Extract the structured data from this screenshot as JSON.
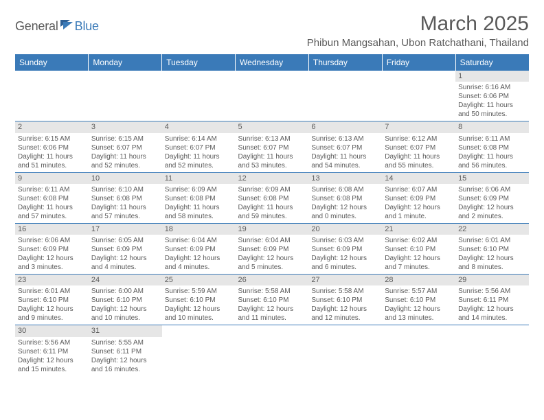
{
  "logo": {
    "part1": "General",
    "part2": "Blue"
  },
  "title": "March 2025",
  "location": "Phibun Mangsahan, Ubon Ratchathani, Thailand",
  "colors": {
    "header_bg": "#3a7ab8",
    "header_text": "#ffffff",
    "daynum_bg": "#e6e6e6",
    "text": "#5a5a5a",
    "rule": "#3a7ab8",
    "logo_blue": "#3a7ab8"
  },
  "weekdays": [
    "Sunday",
    "Monday",
    "Tuesday",
    "Wednesday",
    "Thursday",
    "Friday",
    "Saturday"
  ],
  "weeks": [
    [
      null,
      null,
      null,
      null,
      null,
      null,
      {
        "d": "1",
        "sr": "Sunrise: 6:16 AM",
        "ss": "Sunset: 6:06 PM",
        "dl": "Daylight: 11 hours and 50 minutes."
      }
    ],
    [
      {
        "d": "2",
        "sr": "Sunrise: 6:15 AM",
        "ss": "Sunset: 6:06 PM",
        "dl": "Daylight: 11 hours and 51 minutes."
      },
      {
        "d": "3",
        "sr": "Sunrise: 6:15 AM",
        "ss": "Sunset: 6:07 PM",
        "dl": "Daylight: 11 hours and 52 minutes."
      },
      {
        "d": "4",
        "sr": "Sunrise: 6:14 AM",
        "ss": "Sunset: 6:07 PM",
        "dl": "Daylight: 11 hours and 52 minutes."
      },
      {
        "d": "5",
        "sr": "Sunrise: 6:13 AM",
        "ss": "Sunset: 6:07 PM",
        "dl": "Daylight: 11 hours and 53 minutes."
      },
      {
        "d": "6",
        "sr": "Sunrise: 6:13 AM",
        "ss": "Sunset: 6:07 PM",
        "dl": "Daylight: 11 hours and 54 minutes."
      },
      {
        "d": "7",
        "sr": "Sunrise: 6:12 AM",
        "ss": "Sunset: 6:07 PM",
        "dl": "Daylight: 11 hours and 55 minutes."
      },
      {
        "d": "8",
        "sr": "Sunrise: 6:11 AM",
        "ss": "Sunset: 6:08 PM",
        "dl": "Daylight: 11 hours and 56 minutes."
      }
    ],
    [
      {
        "d": "9",
        "sr": "Sunrise: 6:11 AM",
        "ss": "Sunset: 6:08 PM",
        "dl": "Daylight: 11 hours and 57 minutes."
      },
      {
        "d": "10",
        "sr": "Sunrise: 6:10 AM",
        "ss": "Sunset: 6:08 PM",
        "dl": "Daylight: 11 hours and 57 minutes."
      },
      {
        "d": "11",
        "sr": "Sunrise: 6:09 AM",
        "ss": "Sunset: 6:08 PM",
        "dl": "Daylight: 11 hours and 58 minutes."
      },
      {
        "d": "12",
        "sr": "Sunrise: 6:09 AM",
        "ss": "Sunset: 6:08 PM",
        "dl": "Daylight: 11 hours and 59 minutes."
      },
      {
        "d": "13",
        "sr": "Sunrise: 6:08 AM",
        "ss": "Sunset: 6:08 PM",
        "dl": "Daylight: 12 hours and 0 minutes."
      },
      {
        "d": "14",
        "sr": "Sunrise: 6:07 AM",
        "ss": "Sunset: 6:09 PM",
        "dl": "Daylight: 12 hours and 1 minute."
      },
      {
        "d": "15",
        "sr": "Sunrise: 6:06 AM",
        "ss": "Sunset: 6:09 PM",
        "dl": "Daylight: 12 hours and 2 minutes."
      }
    ],
    [
      {
        "d": "16",
        "sr": "Sunrise: 6:06 AM",
        "ss": "Sunset: 6:09 PM",
        "dl": "Daylight: 12 hours and 3 minutes."
      },
      {
        "d": "17",
        "sr": "Sunrise: 6:05 AM",
        "ss": "Sunset: 6:09 PM",
        "dl": "Daylight: 12 hours and 4 minutes."
      },
      {
        "d": "18",
        "sr": "Sunrise: 6:04 AM",
        "ss": "Sunset: 6:09 PM",
        "dl": "Daylight: 12 hours and 4 minutes."
      },
      {
        "d": "19",
        "sr": "Sunrise: 6:04 AM",
        "ss": "Sunset: 6:09 PM",
        "dl": "Daylight: 12 hours and 5 minutes."
      },
      {
        "d": "20",
        "sr": "Sunrise: 6:03 AM",
        "ss": "Sunset: 6:09 PM",
        "dl": "Daylight: 12 hours and 6 minutes."
      },
      {
        "d": "21",
        "sr": "Sunrise: 6:02 AM",
        "ss": "Sunset: 6:10 PM",
        "dl": "Daylight: 12 hours and 7 minutes."
      },
      {
        "d": "22",
        "sr": "Sunrise: 6:01 AM",
        "ss": "Sunset: 6:10 PM",
        "dl": "Daylight: 12 hours and 8 minutes."
      }
    ],
    [
      {
        "d": "23",
        "sr": "Sunrise: 6:01 AM",
        "ss": "Sunset: 6:10 PM",
        "dl": "Daylight: 12 hours and 9 minutes."
      },
      {
        "d": "24",
        "sr": "Sunrise: 6:00 AM",
        "ss": "Sunset: 6:10 PM",
        "dl": "Daylight: 12 hours and 10 minutes."
      },
      {
        "d": "25",
        "sr": "Sunrise: 5:59 AM",
        "ss": "Sunset: 6:10 PM",
        "dl": "Daylight: 12 hours and 10 minutes."
      },
      {
        "d": "26",
        "sr": "Sunrise: 5:58 AM",
        "ss": "Sunset: 6:10 PM",
        "dl": "Daylight: 12 hours and 11 minutes."
      },
      {
        "d": "27",
        "sr": "Sunrise: 5:58 AM",
        "ss": "Sunset: 6:10 PM",
        "dl": "Daylight: 12 hours and 12 minutes."
      },
      {
        "d": "28",
        "sr": "Sunrise: 5:57 AM",
        "ss": "Sunset: 6:10 PM",
        "dl": "Daylight: 12 hours and 13 minutes."
      },
      {
        "d": "29",
        "sr": "Sunrise: 5:56 AM",
        "ss": "Sunset: 6:11 PM",
        "dl": "Daylight: 12 hours and 14 minutes."
      }
    ],
    [
      {
        "d": "30",
        "sr": "Sunrise: 5:56 AM",
        "ss": "Sunset: 6:11 PM",
        "dl": "Daylight: 12 hours and 15 minutes."
      },
      {
        "d": "31",
        "sr": "Sunrise: 5:55 AM",
        "ss": "Sunset: 6:11 PM",
        "dl": "Daylight: 12 hours and 16 minutes."
      },
      null,
      null,
      null,
      null,
      null
    ]
  ]
}
